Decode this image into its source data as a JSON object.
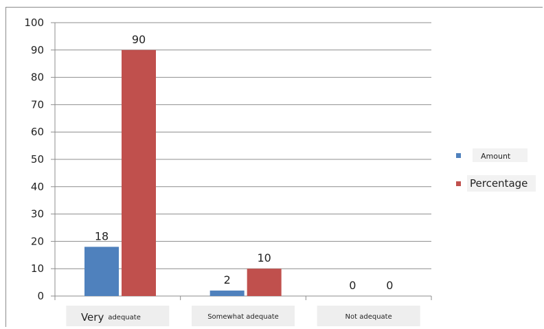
{
  "chart_data": {
    "type": "bar",
    "title": "",
    "xlabel": "",
    "ylabel": "",
    "ylim": [
      0,
      100
    ],
    "yticks": [
      0,
      10,
      20,
      30,
      40,
      50,
      60,
      70,
      80,
      90,
      100
    ],
    "grid": true,
    "legend_position": "right",
    "category_labels": [
      {
        "first": "Very",
        "rest": "adequate"
      },
      {
        "first": "Somewhat adequate",
        "rest": ""
      },
      {
        "first": "Not adequate",
        "rest": ""
      }
    ],
    "series": [
      {
        "name": "Amount",
        "values": [
          18,
          2,
          0
        ],
        "color": "#4f81bd"
      },
      {
        "name": "Percentage",
        "values": [
          90,
          10,
          0
        ],
        "color": "#c0504d"
      }
    ]
  }
}
